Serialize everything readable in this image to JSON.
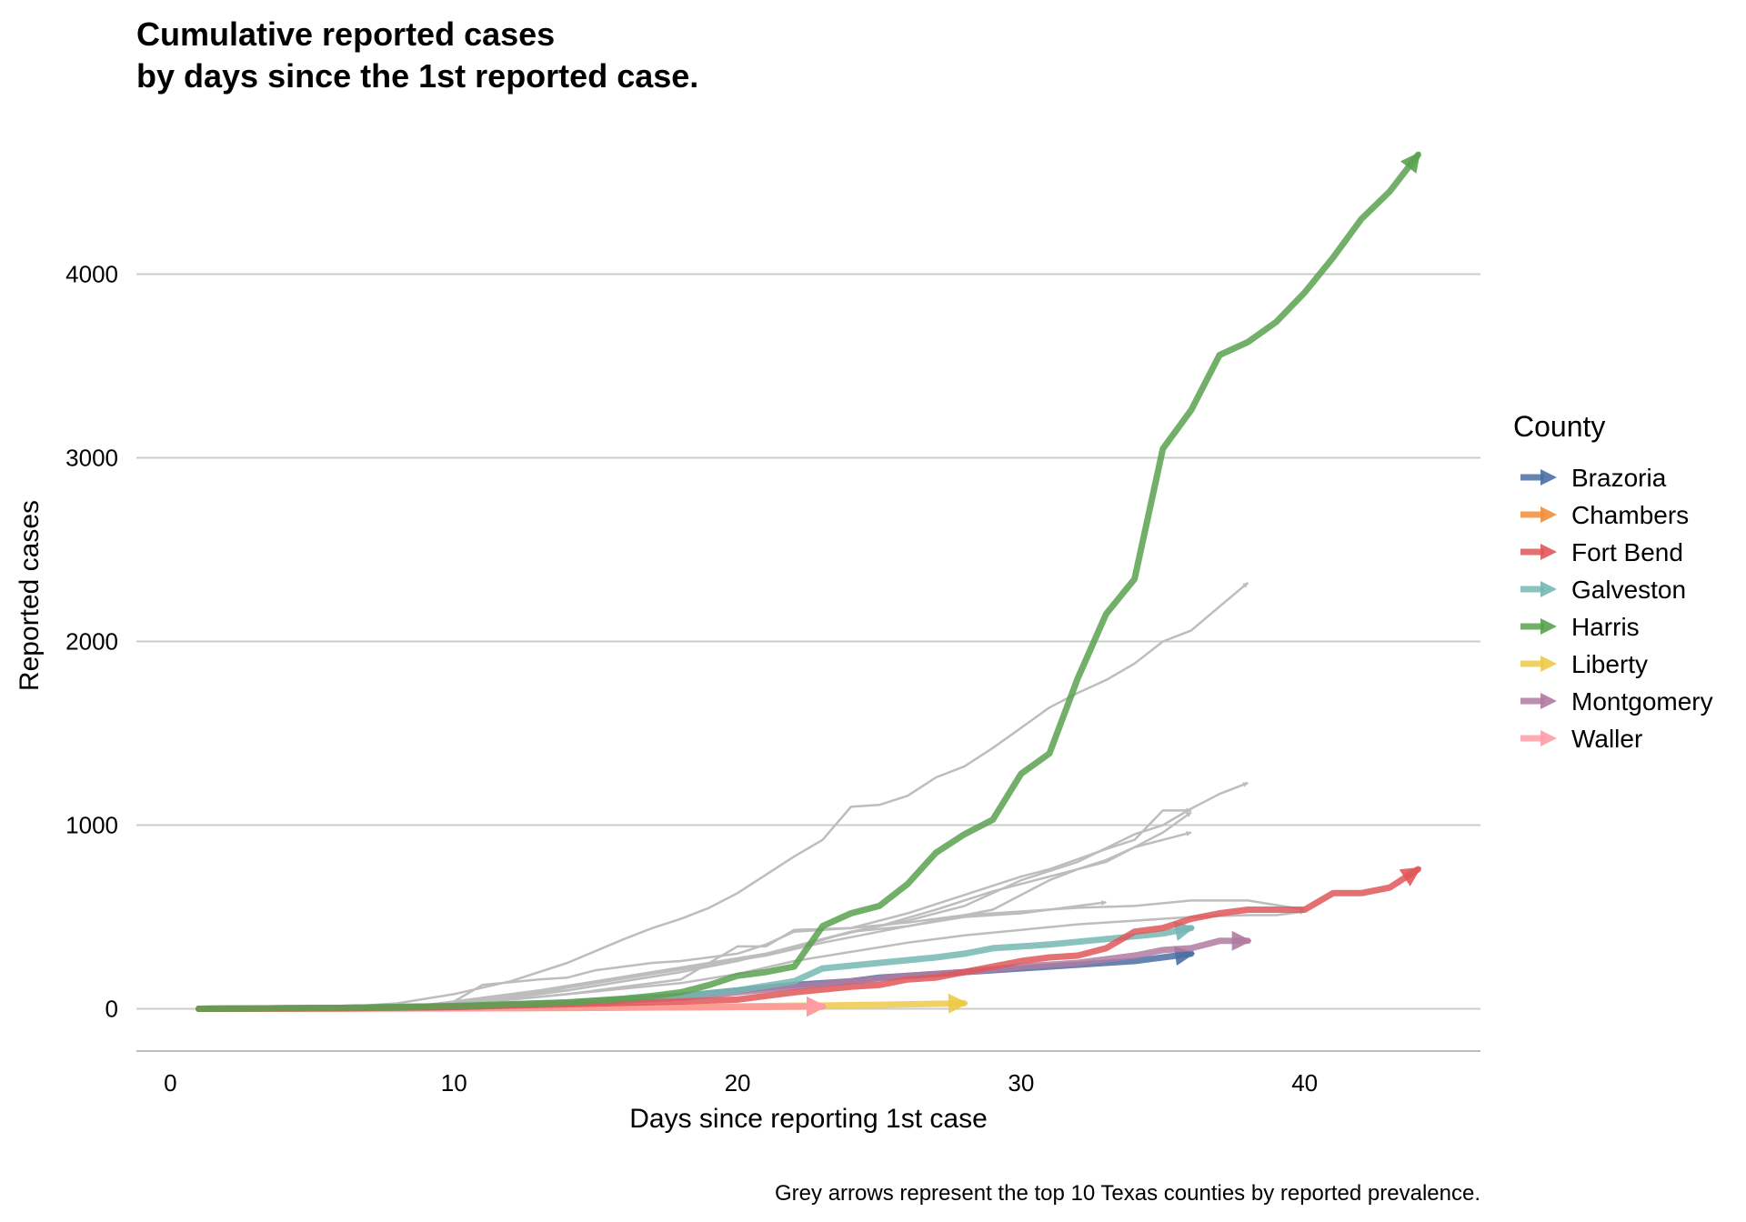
{
  "chart_data": {
    "type": "line",
    "title_line1": "Cumulative reported cases",
    "title_line2": "by days since the 1st reported case.",
    "xlabel": "Days since reporting 1st case",
    "ylabel": "Reported cases",
    "caption": "Grey arrows represent the top 10 Texas counties by reported prevalence.",
    "xlim": [
      -1.2,
      46.2
    ],
    "ylim": [
      -230,
      4750
    ],
    "xticks": [
      0,
      10,
      20,
      30,
      40
    ],
    "yticks": [
      0,
      1000,
      2000,
      3000,
      4000
    ],
    "grid": "horizontal",
    "legend": {
      "title": "County",
      "position": "right"
    },
    "background_color": "#bdbdbd",
    "background_series": [
      {
        "x": [
          2,
          6,
          8,
          10,
          12,
          14,
          16,
          17,
          18,
          19,
          20,
          22,
          23,
          24,
          25,
          26,
          27,
          28,
          29,
          30,
          31,
          32,
          33,
          34,
          35,
          36,
          37,
          38
        ],
        "values": [
          0,
          10,
          30,
          80,
          150,
          250,
          380,
          440,
          490,
          550,
          630,
          830,
          920,
          1100,
          1110,
          1160,
          1260,
          1320,
          1420,
          1530,
          1640,
          1720,
          1790,
          1880,
          2000,
          2060,
          2190,
          2320
        ]
      },
      {
        "x": [
          5,
          8,
          10,
          12,
          14,
          16,
          18,
          20,
          22,
          24,
          26,
          28,
          30,
          32,
          34,
          35,
          36,
          37,
          38
        ],
        "values": [
          0,
          10,
          30,
          60,
          100,
          150,
          200,
          260,
          340,
          420,
          480,
          560,
          700,
          800,
          950,
          1000,
          1090,
          1170,
          1230
        ]
      },
      {
        "x": [
          6,
          9,
          11,
          13,
          15,
          17,
          19,
          21,
          23,
          25,
          27,
          29,
          31,
          33,
          34,
          35,
          36
        ],
        "values": [
          0,
          20,
          60,
          100,
          150,
          200,
          250,
          300,
          380,
          450,
          540,
          640,
          720,
          800,
          880,
          960,
          1070
        ]
      },
      {
        "x": [
          7,
          9,
          11,
          13,
          15,
          17,
          19,
          21,
          23,
          25,
          27,
          29,
          31,
          32,
          33,
          34,
          35,
          36
        ],
        "values": [
          0,
          20,
          50,
          90,
          140,
          190,
          240,
          290,
          360,
          420,
          480,
          540,
          700,
          760,
          810,
          880,
          920,
          960
        ]
      },
      {
        "x": [
          8,
          10,
          11,
          13,
          14,
          15,
          17,
          18,
          20,
          21,
          22,
          24,
          26,
          28,
          30,
          31,
          33,
          34,
          35,
          36
        ],
        "values": [
          0,
          40,
          130,
          160,
          170,
          210,
          250,
          260,
          300,
          350,
          420,
          440,
          520,
          620,
          720,
          760,
          870,
          920,
          1080,
          1080
        ]
      },
      {
        "x": [
          5,
          8,
          10,
          12,
          14,
          16,
          18,
          20,
          22,
          24,
          26,
          28,
          30,
          31,
          32,
          33
        ],
        "values": [
          0,
          10,
          30,
          60,
          100,
          150,
          200,
          270,
          330,
          420,
          450,
          500,
          520,
          540,
          560,
          580
        ]
      },
      {
        "x": [
          4,
          8,
          10,
          12,
          14,
          16,
          18,
          20,
          21,
          22,
          24,
          26,
          28,
          30,
          32,
          34,
          36,
          38,
          40
        ],
        "values": [
          0,
          10,
          30,
          50,
          80,
          120,
          160,
          340,
          340,
          430,
          440,
          470,
          510,
          530,
          550,
          560,
          590,
          590,
          540
        ]
      },
      {
        "x": [
          6,
          10,
          12,
          14,
          16,
          18,
          20,
          22,
          24,
          26,
          28,
          30,
          32,
          34,
          36,
          38,
          39,
          40
        ],
        "values": [
          0,
          20,
          50,
          80,
          110,
          140,
          190,
          260,
          310,
          360,
          400,
          430,
          460,
          480,
          500,
          510,
          510,
          530
        ]
      }
    ],
    "series": [
      {
        "name": "Brazoria",
        "color": "#4a6fa5",
        "x": [
          1,
          6,
          10,
          12,
          15,
          18,
          20,
          22,
          24,
          25,
          27,
          29,
          31,
          33,
          34,
          35,
          36
        ],
        "values": [
          0,
          5,
          10,
          20,
          40,
          70,
          100,
          130,
          150,
          170,
          190,
          210,
          230,
          250,
          260,
          280,
          300
        ]
      },
      {
        "name": "Chambers",
        "color": "#f28e3c",
        "x": [
          1,
          5,
          10,
          15,
          20,
          23
        ],
        "values": [
          0,
          1,
          3,
          6,
          10,
          12
        ]
      },
      {
        "name": "Fort Bend",
        "color": "#e15759",
        "x": [
          1,
          6,
          10,
          14,
          18,
          20,
          22,
          24,
          25,
          26,
          27,
          28,
          29,
          30,
          31,
          32,
          33,
          34,
          35,
          36,
          37,
          38,
          39,
          40,
          41,
          42,
          43,
          44
        ],
        "values": [
          0,
          3,
          10,
          25,
          40,
          50,
          90,
          120,
          130,
          160,
          170,
          200,
          230,
          260,
          280,
          290,
          330,
          420,
          440,
          490,
          520,
          540,
          540,
          540,
          630,
          630,
          660,
          760
        ]
      },
      {
        "name": "Galveston",
        "color": "#76b7b2",
        "x": [
          1,
          6,
          10,
          14,
          18,
          20,
          22,
          23,
          25,
          27,
          28,
          29,
          31,
          33,
          35,
          36
        ],
        "values": [
          0,
          5,
          15,
          35,
          70,
          100,
          150,
          220,
          250,
          280,
          300,
          330,
          350,
          380,
          410,
          440
        ]
      },
      {
        "name": "Harris",
        "color": "#59a14f",
        "x": [
          1,
          6,
          10,
          14,
          16,
          17,
          18,
          19,
          20,
          21,
          22,
          23,
          24,
          25,
          26,
          27,
          28,
          29,
          30,
          31,
          32,
          33,
          34,
          35,
          36,
          37,
          38,
          39,
          40,
          41,
          42,
          43,
          44
        ],
        "values": [
          0,
          5,
          15,
          35,
          55,
          70,
          90,
          130,
          180,
          200,
          230,
          450,
          520,
          560,
          680,
          850,
          950,
          1030,
          1280,
          1390,
          1800,
          2150,
          2340,
          3050,
          3260,
          3560,
          3630,
          3740,
          3900,
          4090,
          4300,
          4450,
          4650
        ]
      },
      {
        "name": "Liberty",
        "color": "#edc948",
        "x": [
          1,
          6,
          10,
          15,
          20,
          23,
          25,
          28
        ],
        "values": [
          0,
          1,
          3,
          8,
          14,
          18,
          22,
          30
        ]
      },
      {
        "name": "Montgomery",
        "color": "#b07aa1",
        "x": [
          1,
          6,
          10,
          14,
          18,
          20,
          22,
          24,
          26,
          28,
          30,
          32,
          34,
          35,
          36,
          37,
          38
        ],
        "values": [
          0,
          5,
          15,
          30,
          60,
          90,
          120,
          150,
          180,
          200,
          230,
          250,
          290,
          320,
          330,
          370,
          370
        ]
      },
      {
        "name": "Waller",
        "color": "#ff9da7",
        "x": [
          1,
          6,
          10,
          15,
          20,
          23
        ],
        "values": [
          0,
          1,
          2,
          5,
          10,
          14
        ]
      }
    ]
  }
}
